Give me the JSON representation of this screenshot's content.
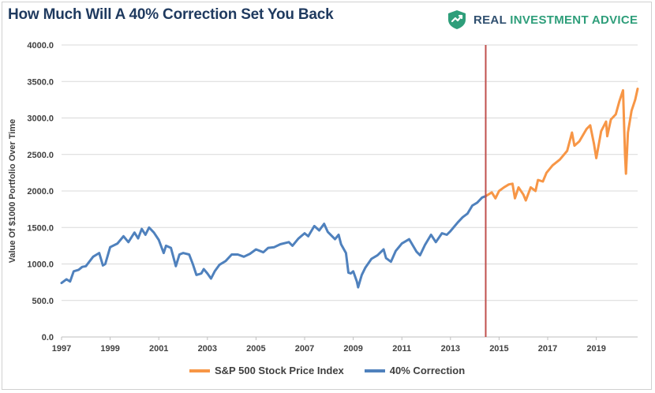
{
  "header": {
    "title": "How Much Will A 40% Correction Set You Back",
    "brand_part1": "REAL ",
    "brand_part2": "INVESTMENT ADVICE",
    "brand_icon": "shield-logo-icon"
  },
  "colors": {
    "sp500": "#F79646",
    "correction": "#4F81BD",
    "marker": "#C0504D",
    "grid": "#D9D9D9",
    "brand_dark": "#2F4F6F",
    "brand_green": "#2E9E7A"
  },
  "chart_data": {
    "type": "line",
    "title": "How Much Will A 40% Correction Set You Back",
    "ylabel": "Value Of $1000 Portfolio Over Time",
    "xlabel": "",
    "xlim": [
      1997,
      2020.7
    ],
    "ylim": [
      0,
      4000
    ],
    "yticks": [
      "0.0",
      "500.0",
      "1000.0",
      "1500.0",
      "2000.0",
      "2500.0",
      "3000.0",
      "3500.0",
      "4000.0"
    ],
    "xticks": [
      "1997",
      "1999",
      "2001",
      "2003",
      "2005",
      "2007",
      "2009",
      "2011",
      "2013",
      "2015",
      "2017",
      "2019"
    ],
    "grid": true,
    "legend_position": "bottom",
    "marker_line_x": 2014.45,
    "series": [
      {
        "name": "S&P 500 Stock Price Index",
        "color": "#F79646",
        "points": [
          [
            2014.45,
            1930
          ],
          [
            2014.7,
            1980
          ],
          [
            2014.85,
            1900
          ],
          [
            2015.0,
            2000
          ],
          [
            2015.2,
            2050
          ],
          [
            2015.4,
            2090
          ],
          [
            2015.55,
            2100
          ],
          [
            2015.65,
            1900
          ],
          [
            2015.8,
            2050
          ],
          [
            2016.0,
            1950
          ],
          [
            2016.1,
            1870
          ],
          [
            2016.3,
            2050
          ],
          [
            2016.5,
            2000
          ],
          [
            2016.6,
            2150
          ],
          [
            2016.8,
            2130
          ],
          [
            2016.95,
            2250
          ],
          [
            2017.2,
            2350
          ],
          [
            2017.5,
            2430
          ],
          [
            2017.8,
            2550
          ],
          [
            2018.0,
            2800
          ],
          [
            2018.1,
            2620
          ],
          [
            2018.3,
            2680
          ],
          [
            2018.6,
            2850
          ],
          [
            2018.75,
            2900
          ],
          [
            2018.9,
            2650
          ],
          [
            2019.0,
            2450
          ],
          [
            2019.2,
            2820
          ],
          [
            2019.4,
            2950
          ],
          [
            2019.45,
            2750
          ],
          [
            2019.6,
            2980
          ],
          [
            2019.8,
            3050
          ],
          [
            2019.95,
            3230
          ],
          [
            2020.1,
            3380
          ],
          [
            2020.18,
            2500
          ],
          [
            2020.22,
            2237
          ],
          [
            2020.3,
            2800
          ],
          [
            2020.45,
            3100
          ],
          [
            2020.6,
            3250
          ],
          [
            2020.7,
            3400
          ]
        ]
      },
      {
        "name": "40% Correction",
        "color": "#4F81BD",
        "points": [
          [
            1997.0,
            740
          ],
          [
            1997.2,
            790
          ],
          [
            1997.35,
            760
          ],
          [
            1997.5,
            900
          ],
          [
            1997.7,
            920
          ],
          [
            1997.85,
            960
          ],
          [
            1998.0,
            970
          ],
          [
            1998.3,
            1100
          ],
          [
            1998.55,
            1150
          ],
          [
            1998.7,
            980
          ],
          [
            1998.8,
            1000
          ],
          [
            1999.0,
            1230
          ],
          [
            1999.3,
            1280
          ],
          [
            1999.55,
            1380
          ],
          [
            1999.75,
            1300
          ],
          [
            2000.0,
            1430
          ],
          [
            2000.15,
            1350
          ],
          [
            2000.3,
            1480
          ],
          [
            2000.45,
            1400
          ],
          [
            2000.6,
            1500
          ],
          [
            2000.8,
            1430
          ],
          [
            2001.0,
            1330
          ],
          [
            2001.2,
            1150
          ],
          [
            2001.3,
            1250
          ],
          [
            2001.5,
            1220
          ],
          [
            2001.7,
            970
          ],
          [
            2001.85,
            1130
          ],
          [
            2002.0,
            1150
          ],
          [
            2002.25,
            1130
          ],
          [
            2002.4,
            1000
          ],
          [
            2002.55,
            850
          ],
          [
            2002.75,
            870
          ],
          [
            2002.85,
            930
          ],
          [
            2003.0,
            870
          ],
          [
            2003.15,
            800
          ],
          [
            2003.3,
            900
          ],
          [
            2003.5,
            990
          ],
          [
            2003.75,
            1040
          ],
          [
            2004.0,
            1130
          ],
          [
            2004.25,
            1130
          ],
          [
            2004.5,
            1100
          ],
          [
            2004.75,
            1140
          ],
          [
            2005.0,
            1200
          ],
          [
            2005.3,
            1160
          ],
          [
            2005.5,
            1220
          ],
          [
            2005.75,
            1230
          ],
          [
            2006.0,
            1270
          ],
          [
            2006.35,
            1300
          ],
          [
            2006.5,
            1250
          ],
          [
            2006.75,
            1350
          ],
          [
            2007.0,
            1420
          ],
          [
            2007.15,
            1380
          ],
          [
            2007.4,
            1520
          ],
          [
            2007.6,
            1460
          ],
          [
            2007.8,
            1550
          ],
          [
            2007.95,
            1440
          ],
          [
            2008.25,
            1340
          ],
          [
            2008.4,
            1400
          ],
          [
            2008.5,
            1270
          ],
          [
            2008.7,
            1150
          ],
          [
            2008.8,
            880
          ],
          [
            2008.9,
            870
          ],
          [
            2009.0,
            900
          ],
          [
            2009.15,
            760
          ],
          [
            2009.2,
            680
          ],
          [
            2009.35,
            850
          ],
          [
            2009.5,
            950
          ],
          [
            2009.75,
            1070
          ],
          [
            2010.0,
            1120
          ],
          [
            2010.25,
            1200
          ],
          [
            2010.35,
            1080
          ],
          [
            2010.55,
            1030
          ],
          [
            2010.75,
            1180
          ],
          [
            2011.0,
            1280
          ],
          [
            2011.3,
            1340
          ],
          [
            2011.6,
            1170
          ],
          [
            2011.75,
            1120
          ],
          [
            2011.95,
            1260
          ],
          [
            2012.2,
            1400
          ],
          [
            2012.4,
            1300
          ],
          [
            2012.65,
            1420
          ],
          [
            2012.85,
            1400
          ],
          [
            2013.0,
            1450
          ],
          [
            2013.3,
            1570
          ],
          [
            2013.5,
            1640
          ],
          [
            2013.7,
            1690
          ],
          [
            2013.9,
            1800
          ],
          [
            2014.1,
            1840
          ],
          [
            2014.3,
            1910
          ],
          [
            2014.45,
            1930
          ]
        ]
      }
    ]
  },
  "legend": {
    "sp500_label": "S&P 500 Stock Price Index",
    "correction_label": "40% Correction"
  }
}
